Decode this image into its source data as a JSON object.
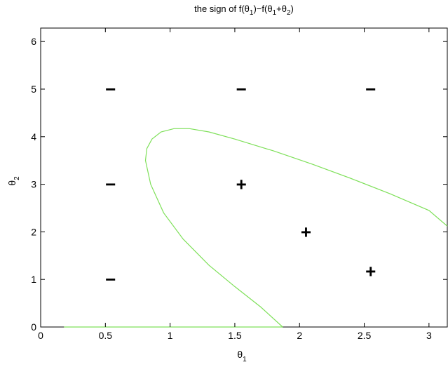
{
  "chart_data": {
    "type": "line",
    "title": {
      "prefix": "the sign of f(θ",
      "s1": "1",
      "mid1": ")−f(θ",
      "s2": "1",
      "mid2": "+θ",
      "s3": "2",
      "suffix": ")"
    },
    "xlabel": {
      "base": "θ",
      "sub": "1"
    },
    "ylabel": {
      "base": "θ",
      "sub": "2"
    },
    "xlim": [
      0,
      3.1416
    ],
    "ylim": [
      0,
      6.2832
    ],
    "xticks": [
      0,
      0.5,
      1,
      1.5,
      2,
      2.5,
      3
    ],
    "xtick_labels": [
      "0",
      "0.5",
      "1",
      "1.5",
      "2",
      "2.5",
      "3"
    ],
    "yticks": [
      0,
      1,
      2,
      3,
      4,
      5,
      6
    ],
    "ytick_labels": [
      "0",
      "1",
      "2",
      "3",
      "4",
      "5",
      "6"
    ],
    "grid": false,
    "series": [
      {
        "color": "#7fe05a",
        "x": [
          0.18,
          0.5,
          1.0,
          1.5,
          1.87
        ],
        "y": [
          0.0,
          0.0,
          0.0,
          0.0,
          0.0
        ]
      },
      {
        "color": "#7fe05a",
        "x": [
          1.87,
          1.7,
          1.5,
          1.3,
          1.1,
          0.95,
          0.85,
          0.81,
          0.82,
          0.86,
          0.93,
          1.03,
          1.15,
          1.3,
          1.5,
          1.8,
          2.1,
          2.4,
          2.7,
          3.0,
          3.1416
        ],
        "y": [
          0.0,
          0.42,
          0.85,
          1.3,
          1.85,
          2.4,
          3.0,
          3.5,
          3.75,
          3.95,
          4.1,
          4.17,
          4.17,
          4.1,
          3.95,
          3.7,
          3.42,
          3.12,
          2.8,
          2.45,
          2.12
        ]
      }
    ],
    "annotations": [
      {
        "text": "−",
        "x": 0.54,
        "y": 5.0
      },
      {
        "text": "−",
        "x": 1.55,
        "y": 5.0
      },
      {
        "text": "−",
        "x": 2.55,
        "y": 5.0
      },
      {
        "text": "−",
        "x": 0.54,
        "y": 3.0
      },
      {
        "text": "+",
        "x": 1.55,
        "y": 3.0
      },
      {
        "text": "+",
        "x": 2.05,
        "y": 2.0
      },
      {
        "text": "−",
        "x": 0.54,
        "y": 1.0
      },
      {
        "text": "+",
        "x": 2.55,
        "y": 1.17
      }
    ]
  }
}
